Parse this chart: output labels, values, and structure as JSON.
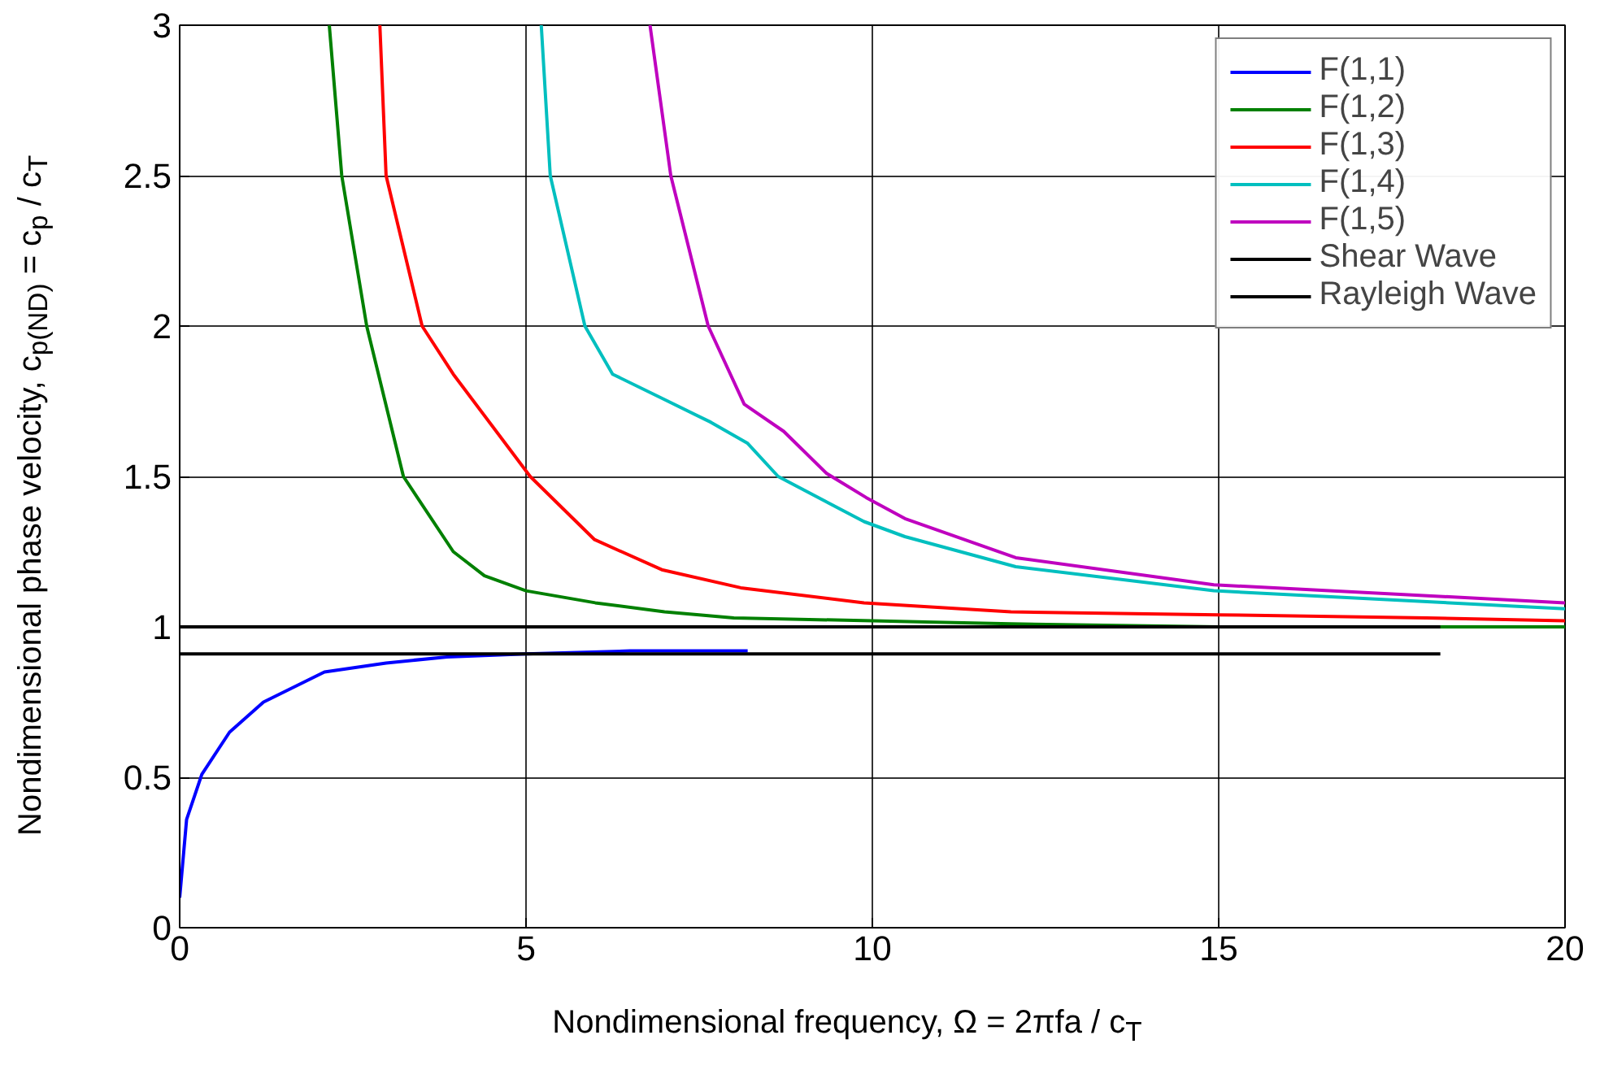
{
  "chart_data": {
    "type": "line",
    "xlabel": "Nondimensional frequency, Ω = 2πfa / c$_{T}$",
    "ylabel": "Nondimensional phase velocity, c$_{p(ND)}$ = c$_{p}$ / c$_{T}$",
    "xlim": [
      0,
      20
    ],
    "ylim": [
      0,
      3
    ],
    "xticks": [
      0,
      5,
      10,
      15,
      20
    ],
    "yticks": [
      0,
      0.5,
      1,
      {
        "value": 1.5,
        "label": "1.5"
      },
      2,
      {
        "value": 2.5,
        "label": "2.5"
      },
      3
    ],
    "grid": true,
    "legend": "top right",
    "line_style": "solid",
    "marker": "none",
    "series": [
      {
        "name": "F(1,1)",
        "color": "#0000ff",
        "x": [
          0,
          0.1,
          0.32,
          0.72,
          1.21,
          2.09,
          2.98,
          3.86,
          5,
          6.5,
          8.2
        ],
        "values": [
          0.1,
          0.36,
          0.51,
          0.65,
          0.75,
          0.85,
          0.88,
          0.9,
          0.91,
          0.92,
          0.92
        ]
      },
      {
        "name": "F(1,2)",
        "color": "#008000",
        "x": [
          2.16,
          2.34,
          2.7,
          3.23,
          3.95,
          4.4,
          5,
          6,
          7,
          8,
          10,
          12,
          15,
          20
        ],
        "values": [
          3,
          2.5,
          2,
          1.5,
          1.25,
          1.17,
          1.12,
          1.08,
          1.05,
          1.03,
          1.02,
          1.01,
          1,
          1
        ]
      },
      {
        "name": "F(1,3)",
        "color": "#ff0000",
        "x": [
          2.89,
          2.98,
          3.5,
          3.95,
          5.06,
          5.99,
          6.96,
          8.1,
          9.88,
          12,
          15,
          18,
          20
        ],
        "values": [
          3,
          2.5,
          2,
          1.84,
          1.5,
          1.29,
          1.19,
          1.13,
          1.08,
          1.05,
          1.04,
          1.03,
          1.02
        ]
      },
      {
        "name": "F(1,4)",
        "color": "#00bfbf",
        "x": [
          5.22,
          5.35,
          5.85,
          6.25,
          6.96,
          7.67,
          8.2,
          8.64,
          9.88,
          10.47,
          12.07,
          14.93,
          20
        ],
        "values": [
          3,
          2.5,
          2,
          1.84,
          1.76,
          1.68,
          1.61,
          1.5,
          1.35,
          1.3,
          1.2,
          1.12,
          1.06
        ]
      },
      {
        "name": "F(1,5)",
        "color": "#bf00bf",
        "x": [
          6.79,
          7.09,
          7.63,
          8.15,
          8.72,
          9.34,
          9.91,
          10.47,
          12.07,
          14.93,
          20
        ],
        "values": [
          3,
          2.5,
          2,
          1.74,
          1.65,
          1.51,
          1.43,
          1.36,
          1.23,
          1.14,
          1.08
        ]
      },
      {
        "name": "Shear Wave",
        "color": "#000000",
        "x": [
          0,
          18.2
        ],
        "values": [
          1,
          1
        ]
      },
      {
        "name": "Rayleigh Wave",
        "color": "#000000",
        "x": [
          0,
          18.2
        ],
        "values": [
          0.91,
          0.91
        ]
      }
    ]
  }
}
